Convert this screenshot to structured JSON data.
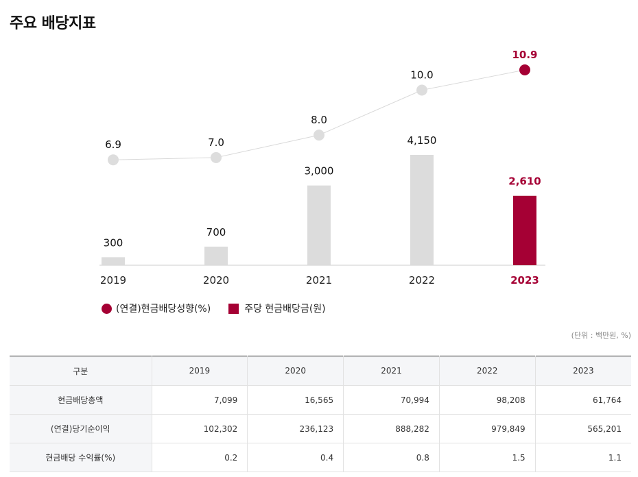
{
  "page": {
    "title": "주요 배당지표",
    "unit_note": "(단위 : 백만원, %)"
  },
  "colors": {
    "accent": "#a50034",
    "muted_bar": "#dcdcdc",
    "muted_point": "#dddddd",
    "line": "#d9d9d9",
    "axis": "#cccccc"
  },
  "legend": {
    "line_label": "(연결)현금배당성향(%)",
    "bar_label": "주당 현금배당금(원)"
  },
  "chart_data": {
    "type": "bar+line",
    "categories": [
      "2019",
      "2020",
      "2021",
      "2022",
      "2023"
    ],
    "highlight_category": "2023",
    "series": [
      {
        "name": "주당 현금배당금(원)",
        "type": "bar",
        "values": [
          300,
          700,
          3000,
          4150,
          2610
        ],
        "labels": [
          "300",
          "700",
          "3,000",
          "4,150",
          "2,610"
        ]
      },
      {
        "name": "(연결)현금배당성향(%)",
        "type": "line",
        "values": [
          6.9,
          7.0,
          8.0,
          10.0,
          10.9
        ],
        "labels": [
          "6.9",
          "7.0",
          "8.0",
          "10.0",
          "10.9"
        ]
      }
    ],
    "title": "주요 배당지표",
    "xlabel": "",
    "ylabel": ""
  },
  "table": {
    "headers": [
      "구분",
      "2019",
      "2020",
      "2021",
      "2022",
      "2023"
    ],
    "rows": [
      {
        "label": "현금배당총액",
        "values": [
          "7,099",
          "16,565",
          "70,994",
          "98,208",
          "61,764"
        ]
      },
      {
        "label": "(연결)당기순이익",
        "values": [
          "102,302",
          "236,123",
          "888,282",
          "979,849",
          "565,201"
        ]
      },
      {
        "label": "현금배당 수익률(%)",
        "values": [
          "0.2",
          "0.4",
          "0.8",
          "1.5",
          "1.1"
        ]
      }
    ]
  }
}
